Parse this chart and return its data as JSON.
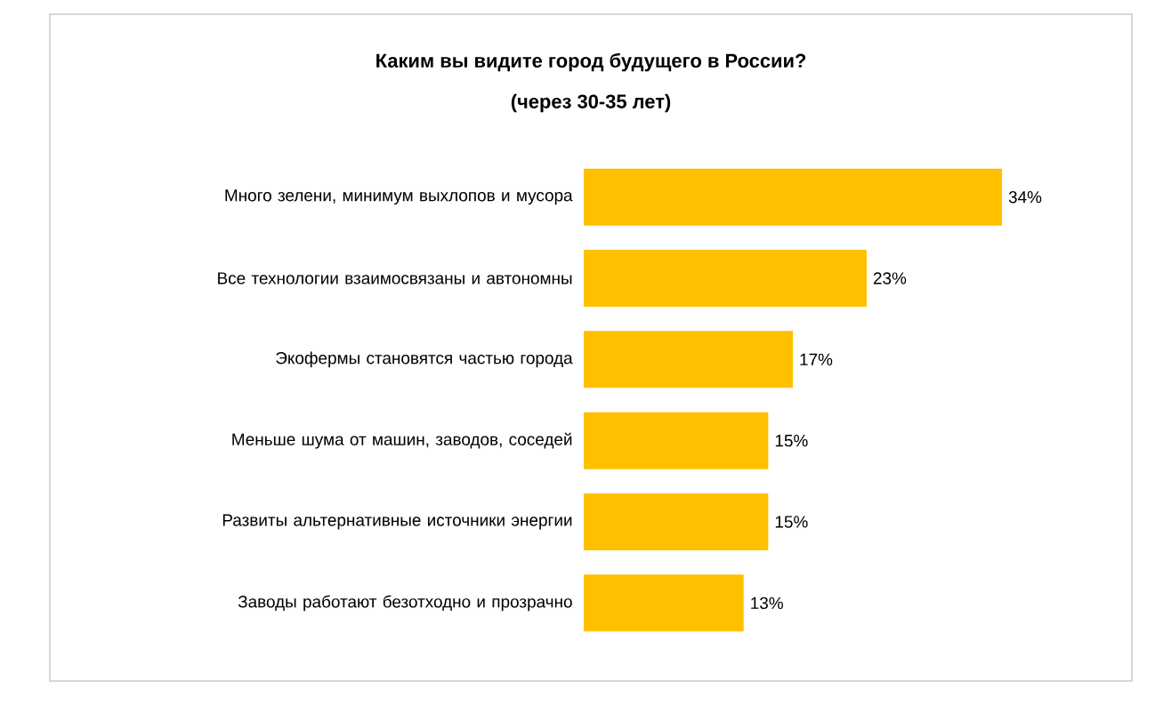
{
  "chart_data": {
    "type": "bar",
    "orientation": "horizontal",
    "title": "Каким вы видите город будущего в России?",
    "subtitle": "(через 30-35 лет)",
    "categories": [
      "Много зелени, минимум выхлопов и мусора",
      "Все технологии взаимосвязаны и автономны",
      "Экофермы становятся частью города",
      "Меньше шума от машин, заводов, соседей",
      "Развиты альтернативные источники энергии",
      "Заводы работают безотходно и прозрачно"
    ],
    "values": [
      34,
      23,
      17,
      15,
      15,
      13
    ],
    "value_labels": [
      "34%",
      "23%",
      "17%",
      "15%",
      "15%",
      "13%"
    ],
    "color": "#ffc000"
  }
}
